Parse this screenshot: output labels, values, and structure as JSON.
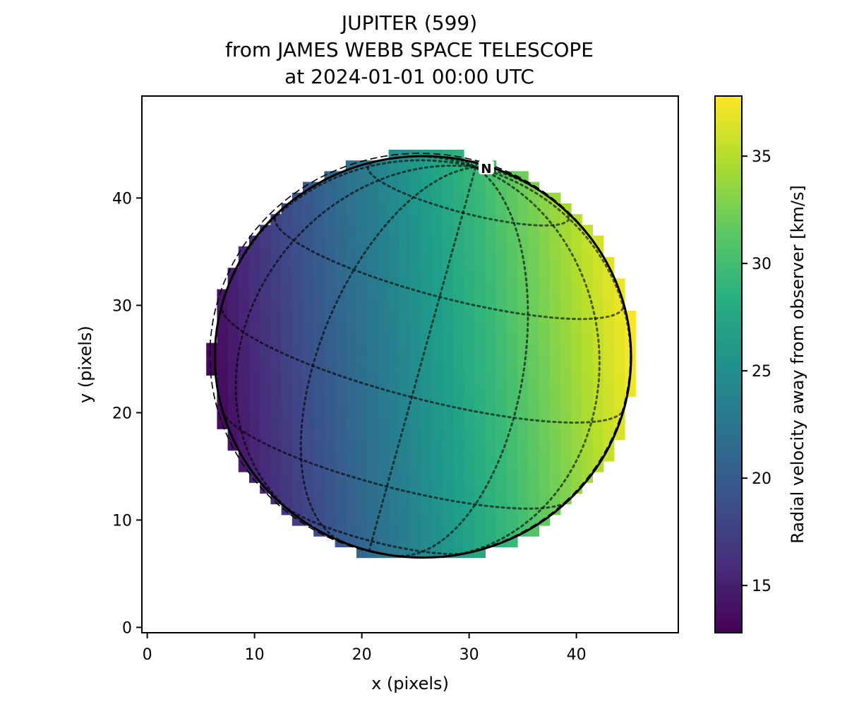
{
  "chart_data": {
    "type": "heatmap",
    "title": [
      "JUPITER (599)",
      "from JAMES WEBB SPACE TELESCOPE",
      "at 2024-01-01 00:00 UTC"
    ],
    "xlabel": "x (pixels)",
    "ylabel": "y (pixels)",
    "xlim": [
      -0.5,
      49.5
    ],
    "ylim": [
      -0.5,
      49.5
    ],
    "xticks": [
      0,
      10,
      20,
      30,
      40
    ],
    "yticks": [
      0,
      10,
      20,
      30,
      40
    ],
    "colorbar": {
      "label": "Radial velocity away from observer [km/s]",
      "range": [
        12.8,
        37.8
      ],
      "ticks": [
        15,
        20,
        25,
        30,
        35
      ],
      "colormap": "viridis"
    },
    "disc": {
      "center_x": 25.7,
      "center_y": 25.2,
      "radius_x": 19.4,
      "radius_y": 18.7,
      "north_pole_label": "N",
      "north_pole_x": 31.6,
      "north_pole_y": 42.8
    },
    "velocity_model": {
      "left_edge_value": 13.5,
      "right_edge_value": 37.5,
      "vertical_tilt": 0.09
    }
  }
}
